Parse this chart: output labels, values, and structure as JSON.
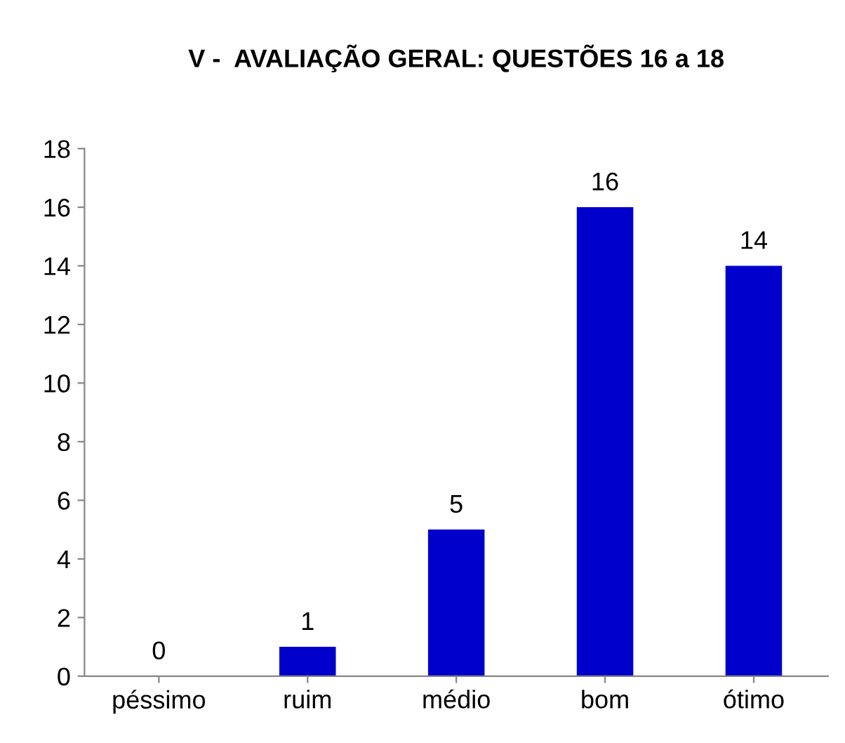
{
  "chart_data": {
    "type": "bar",
    "title": "V -  AVALIAÇÃO GERAL: QUESTÕES 16 a 18",
    "categories": [
      "péssimo",
      "ruim",
      "médio",
      "bom",
      "ótimo"
    ],
    "values": [
      0,
      1,
      5,
      16,
      14
    ],
    "color": "#0000cc",
    "ylim": [
      0,
      18
    ],
    "yticks": [
      0,
      2,
      4,
      6,
      8,
      10,
      12,
      14,
      16,
      18
    ],
    "grid": false,
    "data_labels": true
  }
}
